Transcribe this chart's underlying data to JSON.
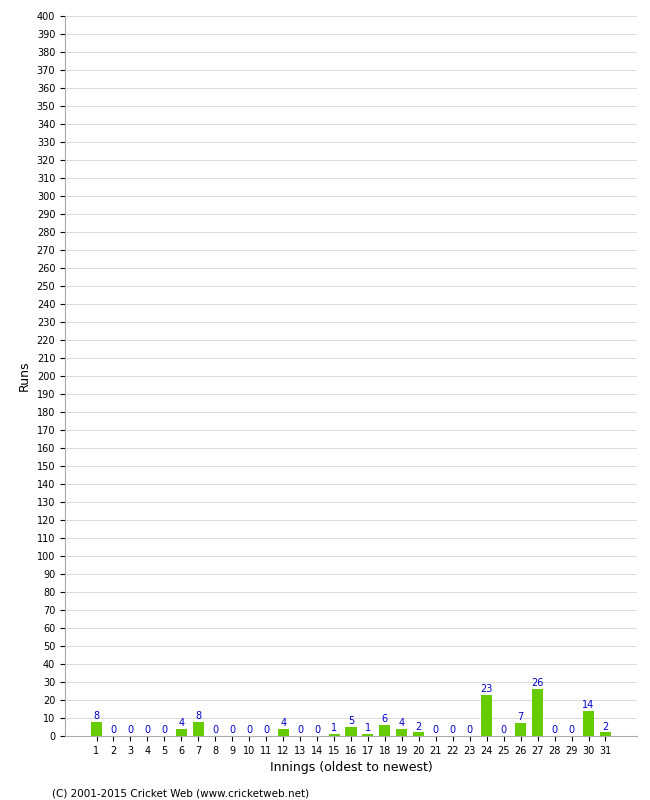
{
  "xlabel": "Innings (oldest to newest)",
  "ylabel": "Runs",
  "innings": [
    1,
    2,
    3,
    4,
    5,
    6,
    7,
    8,
    9,
    10,
    11,
    12,
    13,
    14,
    15,
    16,
    17,
    18,
    19,
    20,
    21,
    22,
    23,
    24,
    25,
    26,
    27,
    28,
    29,
    30,
    31
  ],
  "values": [
    8,
    0,
    0,
    0,
    0,
    4,
    8,
    0,
    0,
    0,
    0,
    4,
    0,
    0,
    1,
    5,
    1,
    6,
    4,
    2,
    0,
    0,
    0,
    23,
    0,
    7,
    26,
    0,
    0,
    14,
    2
  ],
  "bar_color": "#66cc00",
  "label_color": "#0000cc",
  "ylim": [
    0,
    400
  ],
  "yticks": [
    0,
    10,
    20,
    30,
    40,
    50,
    60,
    70,
    80,
    90,
    100,
    110,
    120,
    130,
    140,
    150,
    160,
    170,
    180,
    190,
    200,
    210,
    220,
    230,
    240,
    250,
    260,
    270,
    280,
    290,
    300,
    310,
    320,
    330,
    340,
    350,
    360,
    370,
    380,
    390,
    400
  ],
  "background_color": "#ffffff",
  "grid_color": "#cccccc",
  "copyright": "(C) 2001-2015 Cricket Web (www.cricketweb.net)"
}
